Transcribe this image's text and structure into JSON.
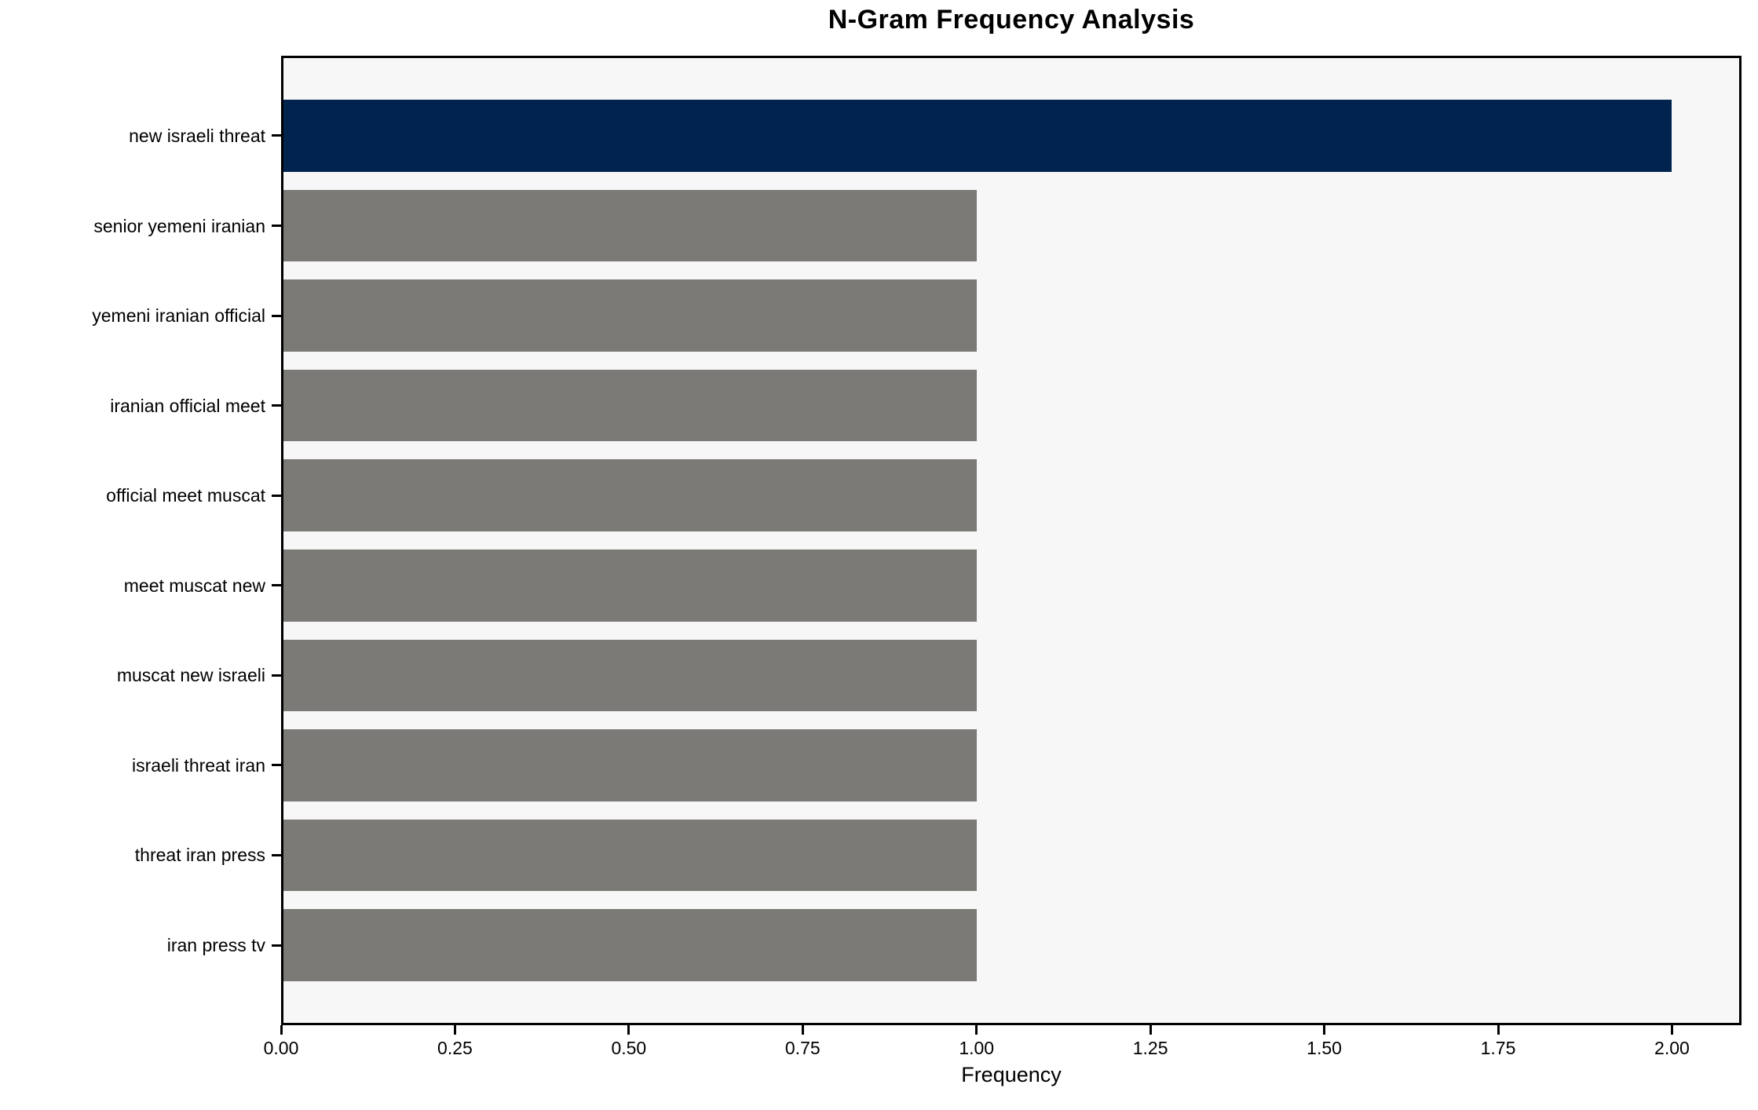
{
  "chart_data": {
    "type": "bar",
    "orientation": "horizontal",
    "title": "N-Gram Frequency Analysis",
    "xlabel": "Frequency",
    "ylabel": "",
    "categories": [
      "new israeli threat",
      "senior yemeni iranian",
      "yemeni iranian official",
      "iranian official meet",
      "official meet muscat",
      "meet muscat new",
      "muscat new israeli",
      "israeli threat iran",
      "threat iran press",
      "iran press tv"
    ],
    "values": [
      2,
      1,
      1,
      1,
      1,
      1,
      1,
      1,
      1,
      1
    ],
    "bar_colors": [
      "#01244f",
      "#7b7a77",
      "#7b7a77",
      "#7b7a77",
      "#7b7a77",
      "#7b7a77",
      "#7b7a77",
      "#7b7a77",
      "#7b7a77",
      "#7b7a77"
    ],
    "x_tick_labels": [
      "0.00",
      "0.25",
      "0.50",
      "0.75",
      "1.00",
      "1.25",
      "1.50",
      "1.75",
      "2.00"
    ],
    "x_tick_values": [
      0,
      0.25,
      0.5,
      0.75,
      1.0,
      1.25,
      1.5,
      1.75,
      2.0
    ],
    "xlim": [
      0,
      2.1
    ],
    "grid": false,
    "legend": null,
    "colors": {
      "highlight_bar": "#01244f",
      "default_bar": "#7b7a77",
      "plot_background": "#f7f7f7",
      "figure_background": "#ffffff",
      "spine": "#000000",
      "text": "#000000"
    }
  }
}
